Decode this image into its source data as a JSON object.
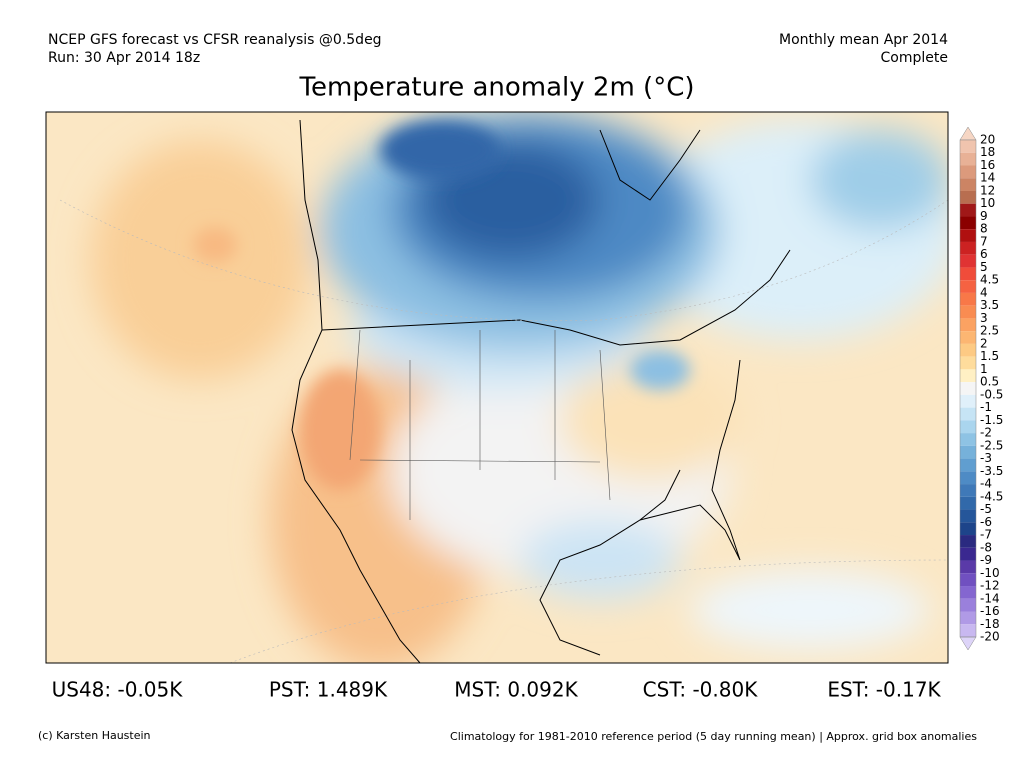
{
  "header": {
    "left_line1": "NCEP GFS forecast vs CFSR reanalysis @0.5deg",
    "left_line2": "Run: 30 Apr 2014 18z",
    "right_line1": "Monthly mean Apr 2014",
    "right_line2": "Complete",
    "title": "Temperature anomaly 2m (°C)"
  },
  "colorbar": {
    "levels": [
      20,
      18,
      16,
      14,
      12,
      10,
      9,
      8,
      7,
      6,
      5,
      4.5,
      4,
      3.5,
      3,
      2.5,
      2,
      1.5,
      1,
      0.5,
      -0.5,
      -1,
      -1.5,
      -2,
      -2.5,
      -3,
      -3.5,
      -4,
      -4.5,
      -5,
      -6,
      -7,
      -8,
      -9,
      -10,
      -12,
      -14,
      -16,
      -18,
      -20
    ],
    "colors": [
      "#f6d6c4",
      "#f0c4ae",
      "#e8b196",
      "#dc9a7c",
      "#cc8464",
      "#b86e50",
      "#a01818",
      "#8b0000",
      "#b01010",
      "#cc2222",
      "#e03333",
      "#f04c3a",
      "#f56242",
      "#f87848",
      "#f98c52",
      "#fba262",
      "#fcb672",
      "#fdca84",
      "#fedc9c",
      "#fff0c4",
      "#f5f5f5",
      "#e0f0fa",
      "#c6e4f5",
      "#aad5ee",
      "#8ec3e4",
      "#76b1da",
      "#609ed0",
      "#4e8bc5",
      "#3f79b8",
      "#3169aa",
      "#25569a",
      "#1d448a",
      "#2a2a80",
      "#3a2890",
      "#5a3aa8",
      "#7050c0",
      "#8466d0",
      "#9a80dc",
      "#b09ae6",
      "#c8b8f0",
      "#ddd4f8"
    ]
  },
  "stats": [
    "US48: -0.05K",
    "PST: 1.489K",
    "MST: 0.092K",
    "CST: -0.80K",
    "EST: -0.17K"
  ],
  "footer": {
    "left": "(c) Karsten Haustein",
    "right": "Climatology for 1981-2010 reference period (5 day running mean) | Approx. grid box anomalies"
  }
}
